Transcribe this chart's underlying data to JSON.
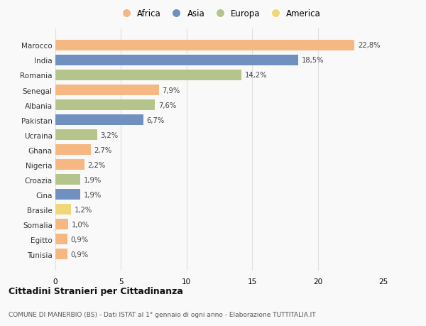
{
  "countries": [
    "Marocco",
    "India",
    "Romania",
    "Senegal",
    "Albania",
    "Pakistan",
    "Ucraina",
    "Ghana",
    "Nigeria",
    "Croazia",
    "Cina",
    "Brasile",
    "Somalia",
    "Egitto",
    "Tunisia"
  ],
  "values": [
    22.8,
    18.5,
    14.2,
    7.9,
    7.6,
    6.7,
    3.2,
    2.7,
    2.2,
    1.9,
    1.9,
    1.2,
    1.0,
    0.9,
    0.9
  ],
  "labels": [
    "22,8%",
    "18,5%",
    "14,2%",
    "7,9%",
    "7,6%",
    "6,7%",
    "3,2%",
    "2,7%",
    "2,2%",
    "1,9%",
    "1,9%",
    "1,2%",
    "1,0%",
    "0,9%",
    "0,9%"
  ],
  "continents": [
    "Africa",
    "Asia",
    "Europa",
    "Africa",
    "Europa",
    "Asia",
    "Europa",
    "Africa",
    "Africa",
    "Europa",
    "Asia",
    "America",
    "Africa",
    "Africa",
    "Africa"
  ],
  "colors": {
    "Africa": "#F5B882",
    "Asia": "#7090C0",
    "Europa": "#B5C48A",
    "America": "#F0D878"
  },
  "xlim": [
    0,
    25
  ],
  "xticks": [
    0,
    5,
    10,
    15,
    20,
    25
  ],
  "title": "Cittadini Stranieri per Cittadinanza",
  "subtitle": "COMUNE DI MANERBIO (BS) - Dati ISTAT al 1° gennaio di ogni anno - Elaborazione TUTTITALIA.IT",
  "bg_color": "#f9f9f9",
  "grid_color": "#e0e0e0",
  "legend_order": [
    "Africa",
    "Asia",
    "Europa",
    "America"
  ]
}
